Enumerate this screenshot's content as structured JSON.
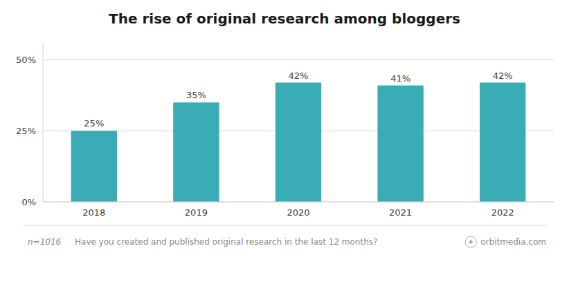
{
  "chart_data": {
    "type": "bar",
    "title": "The rise of original research among bloggers",
    "categories": [
      "2018",
      "2019",
      "2020",
      "2021",
      "2022"
    ],
    "values": [
      25,
      35,
      42,
      41,
      42
    ],
    "value_labels": [
      "25%",
      "35%",
      "42%",
      "41%",
      "42%"
    ],
    "data_labels": true,
    "color": "#3aacb5",
    "ylim": [
      0,
      56
    ],
    "yticks": [
      {
        "value": 0,
        "label": "0%"
      },
      {
        "value": 25,
        "label": "25%"
      },
      {
        "value": 50,
        "label": "50%"
      }
    ],
    "grid": true,
    "annotations": [
      "n=1016",
      "Have you created and published original research in the last 12 months?",
      "orbitmedia.com"
    ]
  }
}
